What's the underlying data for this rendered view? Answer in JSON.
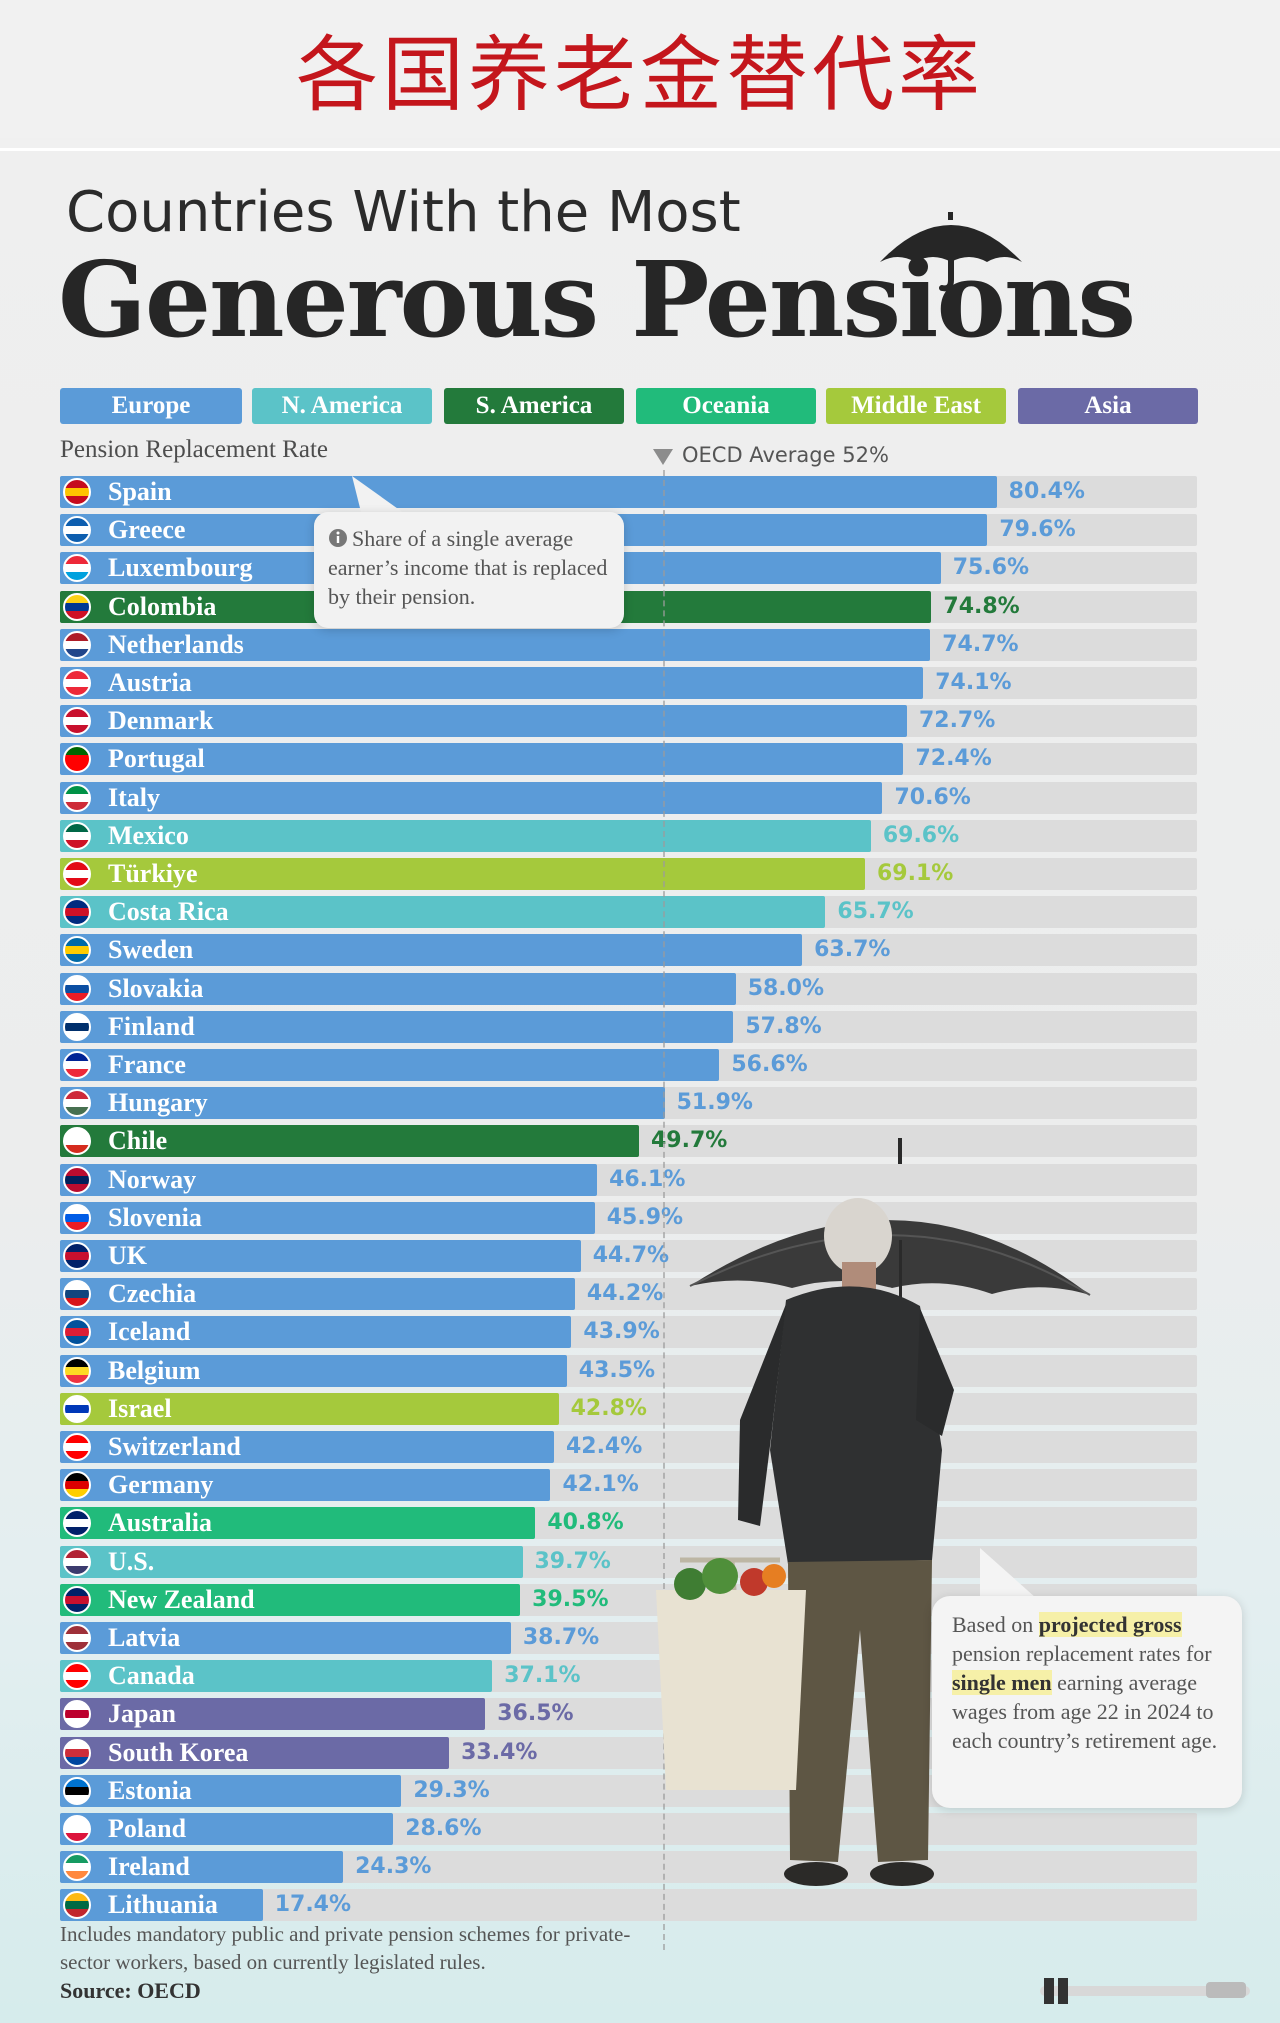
{
  "banner": {
    "title": "各国养老金替代率"
  },
  "header": {
    "subtitle": "Countries With the Most",
    "title": "Generous Pensions"
  },
  "legend": [
    {
      "label": "Europe",
      "color": "#5b9bd8"
    },
    {
      "label": "N. America",
      "color": "#5bc3c8"
    },
    {
      "label": "S. America",
      "color": "#237a3b"
    },
    {
      "label": "Oceania",
      "color": "#21bb7b"
    },
    {
      "label": "Middle East",
      "color": "#a5c93c"
    },
    {
      "label": "Asia",
      "color": "#6b6aa6"
    }
  ],
  "callout": {
    "text": "Share of a single average earner’s income that is replaced by their pension."
  },
  "note": {
    "part1": "Based on ",
    "hl1": "projected gross",
    "part2": " pension replacement rates for ",
    "hl2": "single men",
    "part3": " earning average wages from age 22 in 2024 to each country’s retirement age."
  },
  "footnote": "Includes mandatory public and private pension schemes for private-sector workers, based on currently legislated rules.",
  "source": "Source: OECD",
  "chart_data": {
    "type": "bar",
    "orientation": "horizontal",
    "title": "Countries With the Most Generous Pensions",
    "xlabel": "Pension Replacement Rate",
    "xlim": [
      0,
      120
    ],
    "reference_line": {
      "label": "OECD Average 52%",
      "value": 52
    },
    "categories": [
      "Spain",
      "Greece",
      "Luxembourg",
      "Colombia",
      "Netherlands",
      "Austria",
      "Denmark",
      "Portugal",
      "Italy",
      "Mexico",
      "Türkiye",
      "Costa Rica",
      "Sweden",
      "Slovakia",
      "Finland",
      "France",
      "Hungary",
      "Chile",
      "Norway",
      "Slovenia",
      "UK",
      "Czechia",
      "Iceland",
      "Belgium",
      "Israel",
      "Switzerland",
      "Germany",
      "Australia",
      "U.S.",
      "New Zealand",
      "Latvia",
      "Canada",
      "Japan",
      "South Korea",
      "Estonia",
      "Poland",
      "Ireland",
      "Lithuania"
    ],
    "values": [
      80.4,
      79.6,
      75.6,
      74.8,
      74.7,
      74.1,
      72.7,
      72.4,
      70.6,
      69.6,
      69.1,
      65.7,
      63.7,
      58.0,
      57.8,
      56.6,
      51.9,
      49.7,
      46.1,
      45.9,
      44.7,
      44.2,
      43.9,
      43.5,
      42.8,
      42.4,
      42.1,
      40.8,
      39.7,
      39.5,
      38.7,
      37.1,
      36.5,
      33.4,
      29.3,
      28.6,
      24.3,
      17.4
    ],
    "labels": [
      "80.4%",
      "79.6%",
      "75.6%",
      "74.8%",
      "74.7%",
      "74.1%",
      "72.7%",
      "72.4%",
      "70.6%",
      "69.6%",
      "69.1%",
      "65.7%",
      "63.7%",
      "58.0%",
      "57.8%",
      "56.6%",
      "51.9%",
      "49.7%",
      "46.1%",
      "45.9%",
      "44.7%",
      "44.2%",
      "43.9%",
      "43.5%",
      "42.8%",
      "42.4%",
      "42.1%",
      "40.8%",
      "39.7%",
      "39.5%",
      "38.7%",
      "37.1%",
      "36.5%",
      "33.4%",
      "29.3%",
      "28.6%",
      "24.3%",
      "17.4%"
    ],
    "regions": [
      "Europe",
      "Europe",
      "Europe",
      "S. America",
      "Europe",
      "Europe",
      "Europe",
      "Europe",
      "Europe",
      "N. America",
      "Middle East",
      "N. America",
      "Europe",
      "Europe",
      "Europe",
      "Europe",
      "Europe",
      "S. America",
      "Europe",
      "Europe",
      "Europe",
      "Europe",
      "Europe",
      "Europe",
      "Middle East",
      "Europe",
      "Europe",
      "Oceania",
      "N. America",
      "Oceania",
      "Europe",
      "N. America",
      "Asia",
      "Asia",
      "Europe",
      "Europe",
      "Europe",
      "Europe"
    ],
    "flag_colors": [
      [
        "#c60b1e",
        "#ffc400",
        "#c60b1e"
      ],
      [
        "#0d5eaf",
        "#ffffff",
        "#0d5eaf"
      ],
      [
        "#ed2939",
        "#ffffff",
        "#00a1de"
      ],
      [
        "#fcd116",
        "#003893",
        "#ce1126"
      ],
      [
        "#ae1c28",
        "#ffffff",
        "#21468b"
      ],
      [
        "#ed2939",
        "#ffffff",
        "#ed2939"
      ],
      [
        "#c8102e",
        "#ffffff",
        "#c8102e"
      ],
      [
        "#006600",
        "#ff0000",
        "#ff0000"
      ],
      [
        "#009246",
        "#ffffff",
        "#ce2b37"
      ],
      [
        "#006847",
        "#ffffff",
        "#ce1126"
      ],
      [
        "#e30a17",
        "#ffffff",
        "#e30a17"
      ],
      [
        "#002b7f",
        "#ce1126",
        "#002b7f"
      ],
      [
        "#006aa7",
        "#fecc00",
        "#006aa7"
      ],
      [
        "#ffffff",
        "#0b4ea2",
        "#ee1c25"
      ],
      [
        "#ffffff",
        "#002f6c",
        "#ffffff"
      ],
      [
        "#002395",
        "#ffffff",
        "#ed2939"
      ],
      [
        "#ce2939",
        "#ffffff",
        "#477050"
      ],
      [
        "#ffffff",
        "#ffffff",
        "#d52b1e"
      ],
      [
        "#ba0c2f",
        "#00205b",
        "#ba0c2f"
      ],
      [
        "#ffffff",
        "#005ce6",
        "#ed1c24"
      ],
      [
        "#012169",
        "#c8102e",
        "#012169"
      ],
      [
        "#ffffff",
        "#11457e",
        "#d7141a"
      ],
      [
        "#02529c",
        "#dc1e35",
        "#02529c"
      ],
      [
        "#000000",
        "#fdda24",
        "#ef3340"
      ],
      [
        "#ffffff",
        "#0038b8",
        "#ffffff"
      ],
      [
        "#ff0000",
        "#ffffff",
        "#ff0000"
      ],
      [
        "#000000",
        "#dd0000",
        "#ffce00"
      ],
      [
        "#012169",
        "#ffffff",
        "#012169"
      ],
      [
        "#b22234",
        "#ffffff",
        "#3c3b6e"
      ],
      [
        "#012169",
        "#c8102e",
        "#012169"
      ],
      [
        "#9e3039",
        "#ffffff",
        "#9e3039"
      ],
      [
        "#ff0000",
        "#ffffff",
        "#ff0000"
      ],
      [
        "#ffffff",
        "#bc002d",
        "#ffffff"
      ],
      [
        "#ffffff",
        "#cd2e3a",
        "#0047a0"
      ],
      [
        "#0072ce",
        "#000000",
        "#ffffff"
      ],
      [
        "#ffffff",
        "#ffffff",
        "#dc143c"
      ],
      [
        "#169b62",
        "#ffffff",
        "#ff883e"
      ],
      [
        "#fdb913",
        "#006a44",
        "#c1272d"
      ]
    ]
  },
  "icons": {
    "umbrella": "umbrella-icon",
    "info": "info-icon",
    "person": "person-with-umbrella-illustration",
    "logo": "publisher-logo"
  }
}
